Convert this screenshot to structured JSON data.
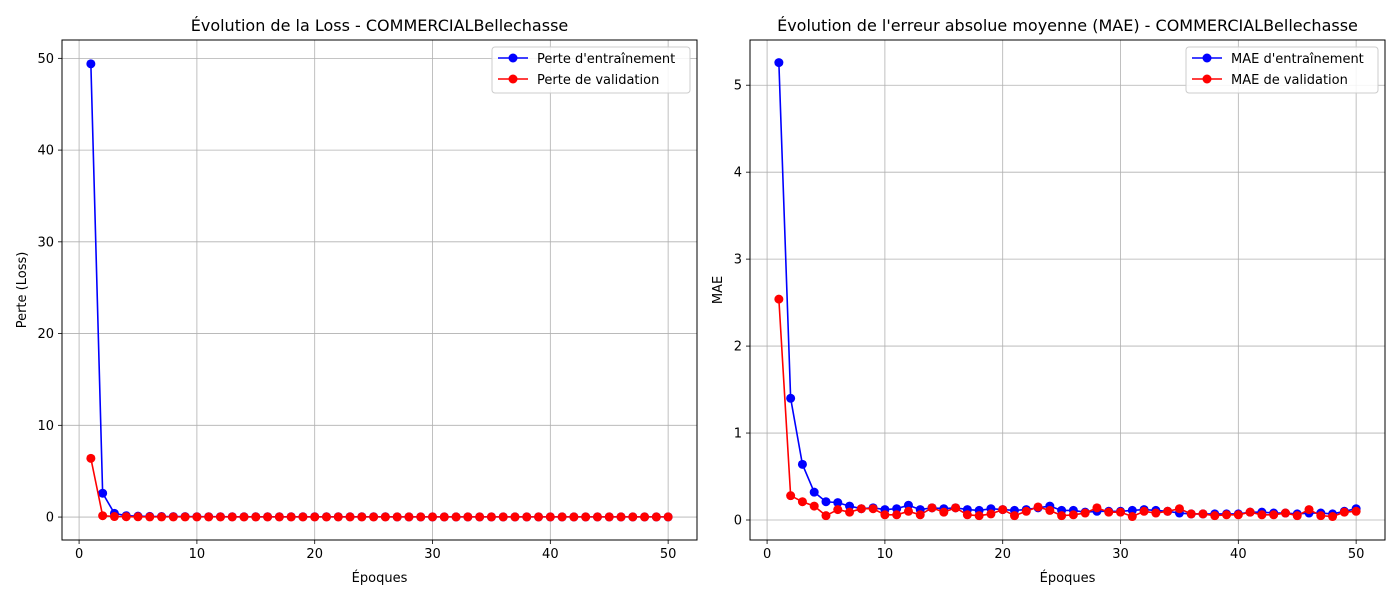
{
  "chart_data": [
    {
      "type": "line",
      "title": "Évolution de la Loss - COMMERCIALBellechasse",
      "xlabel": "Époques",
      "ylabel": "Perte (Loss)",
      "xlim": [
        -1.45,
        52.45
      ],
      "ylim": [
        -2.5,
        52.0
      ],
      "xticks": [
        0,
        10,
        20,
        30,
        40,
        50
      ],
      "yticks": [
        0,
        10,
        20,
        30,
        40,
        50
      ],
      "grid": true,
      "legend_position": "top-right",
      "x": [
        1,
        2,
        3,
        4,
        5,
        6,
        7,
        8,
        9,
        10,
        11,
        12,
        13,
        14,
        15,
        16,
        17,
        18,
        19,
        20,
        21,
        22,
        23,
        24,
        25,
        26,
        27,
        28,
        29,
        30,
        31,
        32,
        33,
        34,
        35,
        36,
        37,
        38,
        39,
        40,
        41,
        42,
        43,
        44,
        45,
        46,
        47,
        48,
        49,
        50
      ],
      "series": [
        {
          "name": "Perte d'entraînement",
          "color": "#0000ff",
          "values": [
            49.4,
            2.6,
            0.4,
            0.15,
            0.1,
            0.07,
            0.06,
            0.05,
            0.05,
            0.04,
            0.04,
            0.04,
            0.03,
            0.03,
            0.03,
            0.03,
            0.03,
            0.03,
            0.03,
            0.03,
            0.03,
            0.03,
            0.03,
            0.03,
            0.03,
            0.03,
            0.02,
            0.02,
            0.02,
            0.02,
            0.02,
            0.02,
            0.02,
            0.02,
            0.02,
            0.02,
            0.02,
            0.02,
            0.02,
            0.02,
            0.02,
            0.02,
            0.02,
            0.02,
            0.02,
            0.02,
            0.02,
            0.02,
            0.02,
            0.02
          ]
        },
        {
          "name": "Perte de validation",
          "color": "#ff0000",
          "values": [
            6.4,
            0.15,
            0.06,
            0.04,
            0.03,
            0.02,
            0.02,
            0.02,
            0.02,
            0.02,
            0.02,
            0.02,
            0.02,
            0.02,
            0.02,
            0.02,
            0.02,
            0.02,
            0.02,
            0.02,
            0.02,
            0.02,
            0.02,
            0.02,
            0.02,
            0.02,
            0.02,
            0.02,
            0.02,
            0.02,
            0.02,
            0.02,
            0.02,
            0.02,
            0.02,
            0.02,
            0.02,
            0.02,
            0.02,
            0.02,
            0.02,
            0.02,
            0.02,
            0.02,
            0.02,
            0.02,
            0.02,
            0.02,
            0.02,
            0.02
          ]
        }
      ]
    },
    {
      "type": "line",
      "title": "Évolution de l'erreur absolue moyenne (MAE) - COMMERCIALBellechasse",
      "xlabel": "Époques",
      "ylabel": "MAE",
      "xlim": [
        -1.45,
        52.45
      ],
      "ylim": [
        -0.23,
        5.52
      ],
      "xticks": [
        0,
        10,
        20,
        30,
        40,
        50
      ],
      "yticks": [
        0,
        1,
        2,
        3,
        4,
        5
      ],
      "grid": true,
      "legend_position": "top-right",
      "x": [
        1,
        2,
        3,
        4,
        5,
        6,
        7,
        8,
        9,
        10,
        11,
        12,
        13,
        14,
        15,
        16,
        17,
        18,
        19,
        20,
        21,
        22,
        23,
        24,
        25,
        26,
        27,
        28,
        29,
        30,
        31,
        32,
        33,
        34,
        35,
        36,
        37,
        38,
        39,
        40,
        41,
        42,
        43,
        44,
        45,
        46,
        47,
        48,
        49,
        50
      ],
      "series": [
        {
          "name": "MAE d'entraînement",
          "color": "#0000ff",
          "values": [
            5.26,
            1.4,
            0.64,
            0.32,
            0.21,
            0.2,
            0.16,
            0.13,
            0.14,
            0.12,
            0.13,
            0.17,
            0.12,
            0.14,
            0.13,
            0.14,
            0.12,
            0.11,
            0.13,
            0.12,
            0.11,
            0.12,
            0.14,
            0.16,
            0.11,
            0.11,
            0.09,
            0.1,
            0.1,
            0.1,
            0.11,
            0.12,
            0.11,
            0.1,
            0.08,
            0.07,
            0.07,
            0.07,
            0.07,
            0.07,
            0.09,
            0.09,
            0.08,
            0.08,
            0.07,
            0.08,
            0.08,
            0.07,
            0.1,
            0.13
          ]
        },
        {
          "name": "MAE de validation",
          "color": "#ff0000",
          "values": [
            2.54,
            0.28,
            0.21,
            0.16,
            0.05,
            0.12,
            0.09,
            0.13,
            0.13,
            0.06,
            0.06,
            0.1,
            0.06,
            0.14,
            0.09,
            0.14,
            0.06,
            0.05,
            0.07,
            0.12,
            0.05,
            0.1,
            0.15,
            0.11,
            0.05,
            0.06,
            0.08,
            0.14,
            0.09,
            0.09,
            0.04,
            0.1,
            0.08,
            0.1,
            0.13,
            0.07,
            0.07,
            0.05,
            0.06,
            0.06,
            0.09,
            0.06,
            0.06,
            0.08,
            0.05,
            0.12,
            0.05,
            0.04,
            0.09,
            0.1
          ]
        }
      ]
    }
  ]
}
